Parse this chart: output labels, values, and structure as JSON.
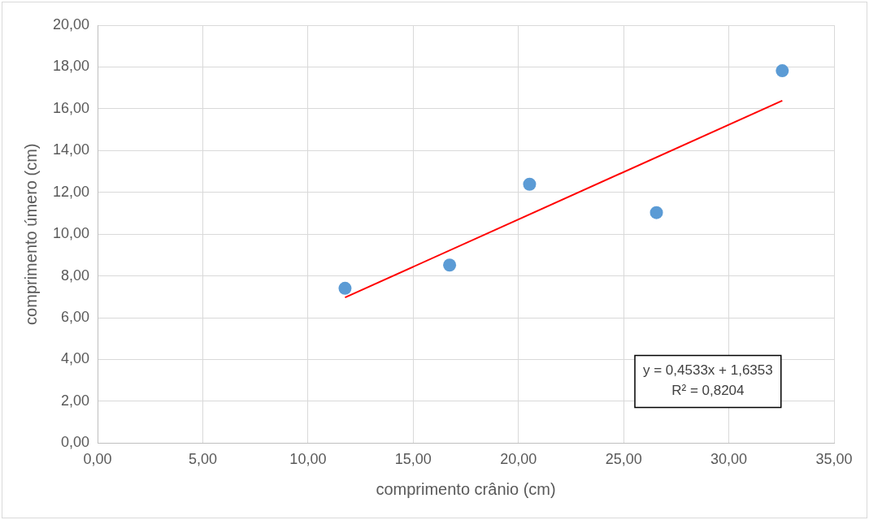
{
  "chart_data": {
    "type": "scatter",
    "xlabel": "comprimento crânio (cm)",
    "ylabel": "comprimento úmero (cm)",
    "series": [
      {
        "type": "scatter",
        "color": "#5b9bd5",
        "marker": "circle",
        "x": [
          11.76,
          16.73,
          20.53,
          26.56,
          32.54
        ],
        "values": [
          7.41,
          8.52,
          12.39,
          11.03,
          17.82
        ]
      },
      {
        "type": "line",
        "color": "#ff0000",
        "marker": "none",
        "line_style": "solid",
        "x": [
          11.76,
          32.54
        ],
        "values": [
          6.97,
          16.39
        ]
      }
    ],
    "xlim": [
      0,
      35
    ],
    "xticks": [
      {
        "value": 0,
        "label": "0,00"
      },
      {
        "value": 5,
        "label": "5,00"
      },
      {
        "value": 10,
        "label": "10,00"
      },
      {
        "value": 15,
        "label": "15,00"
      },
      {
        "value": 20,
        "label": "20,00"
      },
      {
        "value": 25,
        "label": "25,00"
      },
      {
        "value": 30,
        "label": "30,00"
      },
      {
        "value": 35,
        "label": "35,00"
      }
    ],
    "ylim": [
      0,
      20
    ],
    "yticks": [
      {
        "value": 0,
        "label": "0,00"
      },
      {
        "value": 2,
        "label": "2,00"
      },
      {
        "value": 4,
        "label": "4,00"
      },
      {
        "value": 6,
        "label": "6,00"
      },
      {
        "value": 8,
        "label": "8,00"
      },
      {
        "value": 10,
        "label": "10,00"
      },
      {
        "value": 12,
        "label": "12,00"
      },
      {
        "value": 14,
        "label": "14,00"
      },
      {
        "value": 16,
        "label": "16,00"
      },
      {
        "value": 18,
        "label": "18,00"
      },
      {
        "value": 20,
        "label": "20,00"
      }
    ],
    "annotations": [
      "y = 0,4533x + 1,6353",
      "R² = 0,8204"
    ],
    "grid": true,
    "legend": false
  }
}
